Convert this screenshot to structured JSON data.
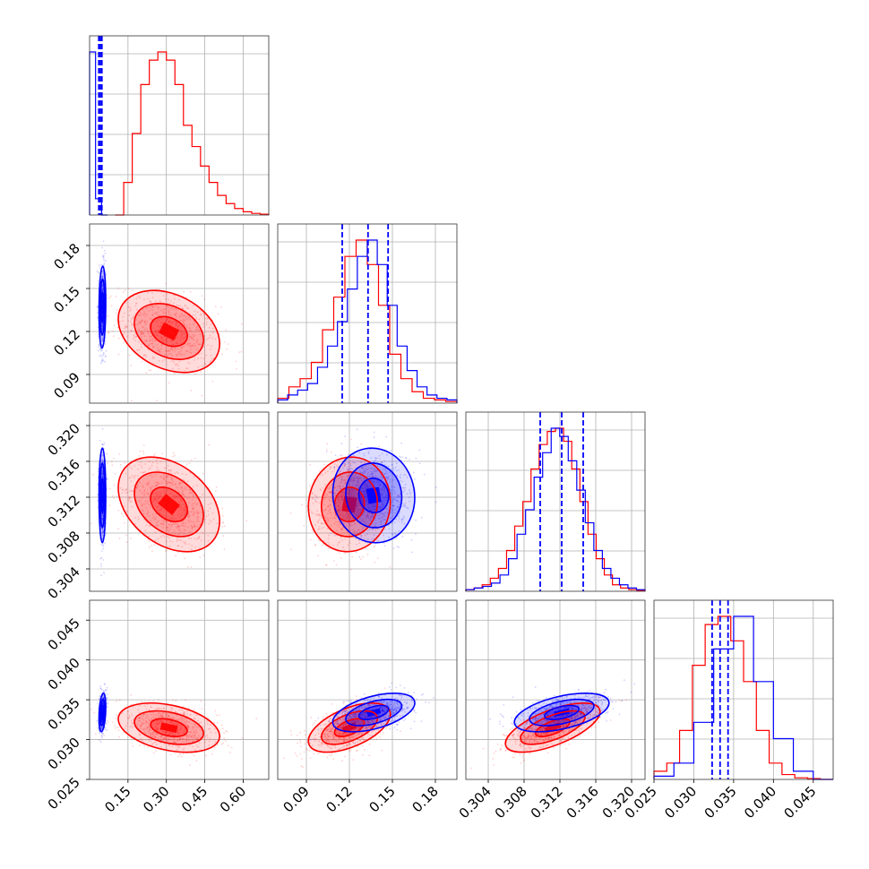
{
  "chart_data": {
    "type": "scatter",
    "figure": "corner-plot",
    "n_params": 4,
    "colors": {
      "red": "#ff0000",
      "blue": "#0000ff",
      "grid": "#b0b0b0"
    },
    "params": [
      {
        "range": [
          0.0,
          0.7
        ],
        "ticks": [
          "0.15",
          "0.30",
          "0.45",
          "0.60"
        ],
        "tick_values": [
          0.15,
          0.3,
          0.45,
          0.6
        ]
      },
      {
        "range": [
          0.07,
          0.195
        ],
        "ticks": [
          "0.09",
          "0.12",
          "0.15",
          "0.18"
        ],
        "tick_values": [
          0.09,
          0.12,
          0.15,
          0.18
        ]
      },
      {
        "range": [
          0.3015,
          0.3215
        ],
        "ticks": [
          "0.304",
          "0.308",
          "0.312",
          "0.316",
          "0.320"
        ],
        "tick_values": [
          0.304,
          0.308,
          0.312,
          0.316,
          0.32
        ]
      },
      {
        "range": [
          0.025,
          0.0475
        ],
        "ticks": [
          "0.025",
          "0.030",
          "0.035",
          "0.040",
          "0.045"
        ],
        "tick_values": [
          0.025,
          0.03,
          0.035,
          0.04,
          0.045
        ]
      }
    ],
    "series": [
      {
        "name": "",
        "color": "#ff0000",
        "mean": [
          0.31,
          0.12,
          0.3112,
          0.0315
        ],
        "sd": [
          0.09,
          0.013,
          0.0024,
          0.0014
        ],
        "corr": [
          [
            1,
            -0.3,
            -0.35,
            -0.35
          ],
          [
            -0.3,
            1,
            0.05,
            0.55
          ],
          [
            -0.35,
            0.05,
            1,
            0.65
          ],
          [
            -0.35,
            0.55,
            0.65,
            1
          ]
        ],
        "hist1d": [
          [
            0.0,
            0.2,
            0.5,
            0.8,
            0.95,
            1.0,
            0.95,
            0.8,
            0.55,
            0.42,
            0.3,
            0.2,
            0.12,
            0.07,
            0.04,
            0.02,
            0.01,
            0.005
          ],
          [
            0.03,
            0.1,
            0.15,
            0.25,
            0.45,
            0.65,
            0.9,
            1.0,
            0.85,
            0.6,
            0.3,
            0.15,
            0.07,
            0.03,
            0.02,
            0.01
          ],
          [
            0.01,
            0.02,
            0.04,
            0.08,
            0.14,
            0.25,
            0.4,
            0.55,
            0.75,
            0.9,
            0.98,
            1.0,
            0.92,
            0.75,
            0.55,
            0.35,
            0.2,
            0.1,
            0.04,
            0.02,
            0.01,
            0.005
          ],
          [
            0.05,
            0.1,
            0.3,
            0.7,
            0.95,
            1.0,
            0.85,
            0.6,
            0.3,
            0.1,
            0.03,
            0.01,
            0.005,
            0.0
          ]
        ]
      },
      {
        "name": "",
        "color": "#0000ff",
        "mean": [
          0.05,
          0.137,
          0.3122,
          0.0334
        ],
        "sd": [
          0.006,
          0.013,
          0.0024,
          0.0011
        ],
        "corr": [
          [
            1,
            0.1,
            0.0,
            0.3
          ],
          [
            0.1,
            1,
            -0.05,
            0.5
          ],
          [
            0.0,
            -0.05,
            1,
            0.5
          ],
          [
            0.3,
            0.5,
            0.5,
            1
          ]
        ],
        "hist1d": [
          [
            1.0,
            0.1,
            0.0
          ],
          [
            0.02,
            0.05,
            0.08,
            0.12,
            0.22,
            0.35,
            0.5,
            0.7,
            0.9,
            1.0,
            0.85,
            0.6,
            0.35,
            0.2,
            0.1,
            0.05,
            0.03,
            0.02
          ],
          [
            0.01,
            0.02,
            0.03,
            0.05,
            0.1,
            0.2,
            0.35,
            0.5,
            0.7,
            0.85,
            1.0,
            0.95,
            0.8,
            0.62,
            0.42,
            0.25,
            0.14,
            0.08,
            0.04,
            0.02,
            0.01
          ],
          [
            0.02,
            0.1,
            0.35,
            0.8,
            1.0,
            0.6,
            0.25,
            0.05,
            0.0
          ]
        ],
        "quantiles": [
          [
            0.036,
            0.042,
            0.048
          ],
          [
            0.115,
            0.133,
            0.147
          ],
          [
            0.3098,
            0.3122,
            0.3146
          ],
          [
            0.0323,
            0.0333,
            0.0343
          ]
        ]
      }
    ],
    "contour_levels": [
      0.8,
      1.5,
      2.2
    ],
    "grid": true,
    "legend": "none"
  }
}
